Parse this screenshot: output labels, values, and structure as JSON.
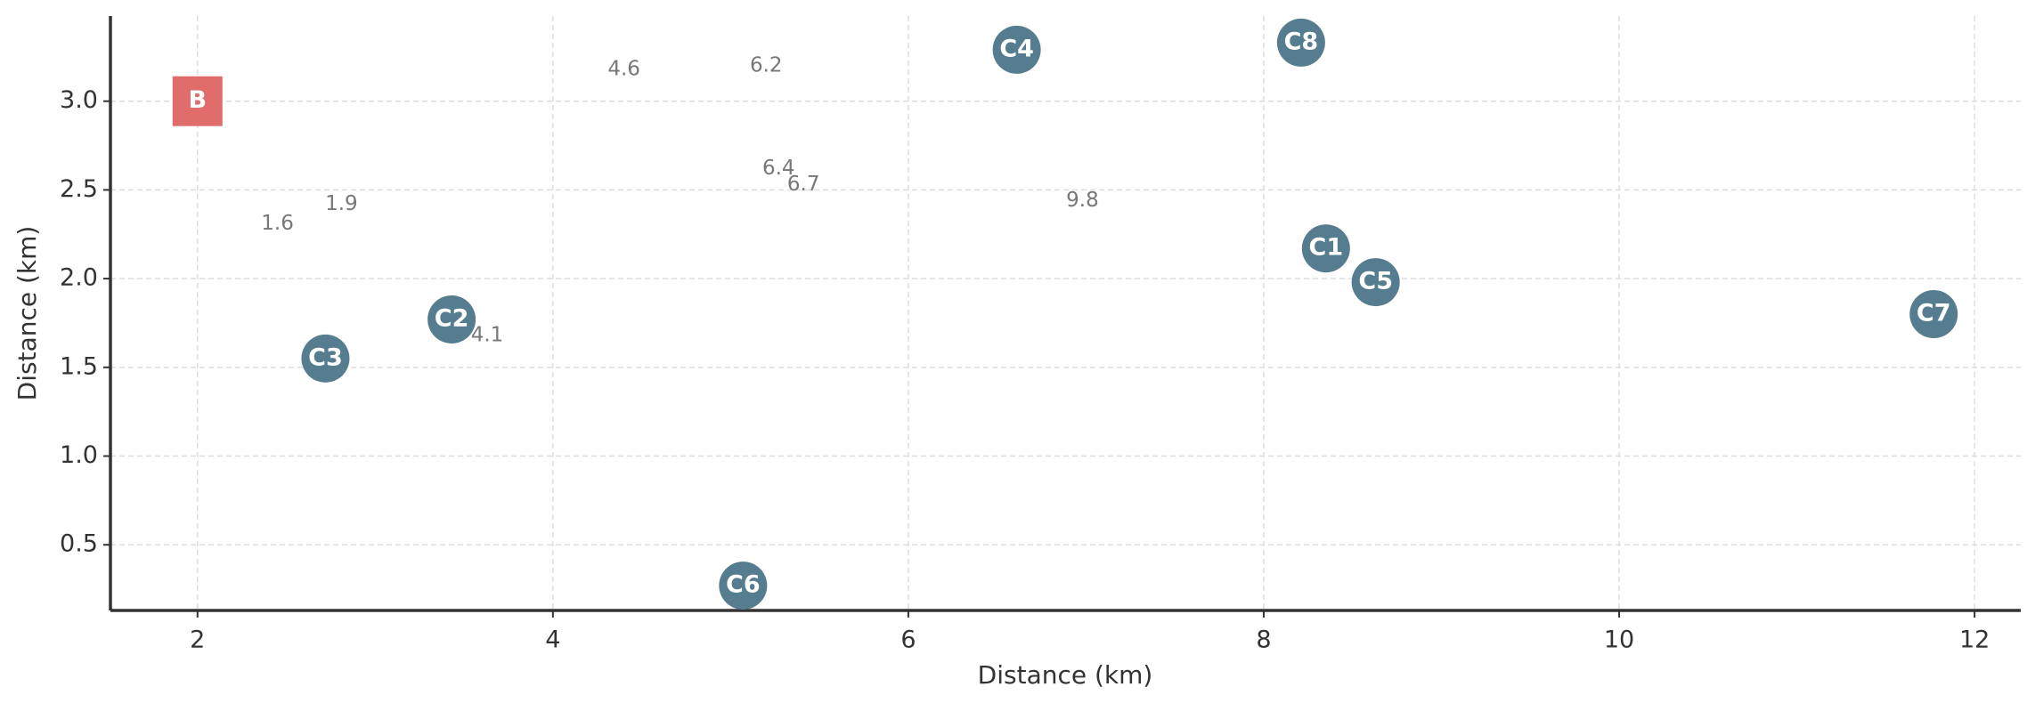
{
  "chart_data": {
    "type": "scatter",
    "xlabel": "Distance (km)",
    "ylabel": "Distance (km)",
    "xlim": [
      1.51,
      12.26
    ],
    "ylim": [
      0.13,
      3.48
    ],
    "xticks": [
      2,
      4,
      6,
      8,
      10,
      12
    ],
    "yticks": [
      0.5,
      {
        "value": 1,
        "label": "1.0"
      },
      1.5,
      {
        "value": 2,
        "label": "2.0"
      },
      2.5,
      {
        "value": 3,
        "label": "3.0"
      }
    ],
    "grid": true,
    "points": [
      {
        "label": "B",
        "x": 2.0,
        "y": 3.0,
        "marker": "square",
        "color": "#e06c6c"
      },
      {
        "label": "C1",
        "x": 8.35,
        "y": 2.17,
        "marker": "circle",
        "color": "#567d8f"
      },
      {
        "label": "C2",
        "x": 3.43,
        "y": 1.77,
        "marker": "circle",
        "color": "#567d8f"
      },
      {
        "label": "C3",
        "x": 2.72,
        "y": 1.55,
        "marker": "circle",
        "color": "#567d8f"
      },
      {
        "label": "C4",
        "x": 6.61,
        "y": 3.29,
        "marker": "circle",
        "color": "#567d8f"
      },
      {
        "label": "C5",
        "x": 8.63,
        "y": 1.98,
        "marker": "circle",
        "color": "#567d8f"
      },
      {
        "label": "C6",
        "x": 5.07,
        "y": 0.27,
        "marker": "circle",
        "color": "#567d8f"
      },
      {
        "label": "C7",
        "x": 11.77,
        "y": 1.8,
        "marker": "circle",
        "color": "#567d8f"
      },
      {
        "label": "C8",
        "x": 8.21,
        "y": 3.33,
        "marker": "circle",
        "color": "#567d8f"
      }
    ],
    "annotations": [
      {
        "text": 1.6,
        "x": 2.45,
        "y": 2.31
      },
      {
        "text": 1.9,
        "x": 2.81,
        "y": 2.42
      },
      {
        "text": 4.1,
        "x": 3.63,
        "y": 1.68
      },
      {
        "text": 4.6,
        "x": 4.4,
        "y": 3.18
      },
      {
        "text": 6.2,
        "x": 5.2,
        "y": 3.2
      },
      {
        "text": 6.4,
        "x": 5.27,
        "y": 2.62
      },
      {
        "text": 6.7,
        "x": 5.41,
        "y": 2.53
      },
      {
        "text": 9.8,
        "x": 6.98,
        "y": 2.44
      }
    ]
  }
}
